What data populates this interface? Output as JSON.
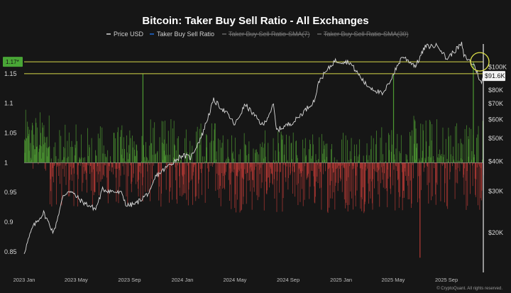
{
  "chart_data": {
    "type": "bar+line",
    "title": "Bitcoin: Taker Buy Sell Ratio - All Exchanges",
    "legend": [
      {
        "label": "Price USD",
        "color": "#d9d9d9",
        "active": true
      },
      {
        "label": "Taker Buy Sell Ratio",
        "color": "#1f6bd6",
        "active": true
      },
      {
        "label": "Taker Buy Sell Ratio-SMA(7)",
        "color": "#777777",
        "active": false
      },
      {
        "label": "Taker Buy Sell Ratio-SMA(30)",
        "color": "#777777",
        "active": false
      }
    ],
    "x_ticks": [
      "2023 Jan",
      "2023 May",
      "2023 Sep",
      "2024 Jan",
      "2024 May",
      "2024 Sep",
      "2025 Jan",
      "2025 May",
      "2025 Sep"
    ],
    "x_range": [
      "2023-01-01",
      "2025-11-25"
    ],
    "left_axis": {
      "ylim": [
        0.82,
        1.2
      ],
      "ticks": [
        "0.85",
        "0.9",
        "0.95",
        "1",
        "1.05",
        "1.1",
        "1.15"
      ],
      "baseline": 1
    },
    "right_axis": {
      "scale": "log",
      "ylim": [
        14000,
        125000
      ],
      "ticks": [
        "$20K",
        "$30K",
        "$40K",
        "$50K",
        "$60K",
        "$70K",
        "$80K",
        "$100K"
      ]
    },
    "ratio_series": {
      "name": "Taker Buy Sell Ratio",
      "up_color": "#4e9a32",
      "down_color": "#b53a35",
      "segments": [
        {
          "start": "2023-01",
          "end": "2023-03",
          "mean": 1.03,
          "spread": 0.06
        },
        {
          "start": "2023-03",
          "end": "2023-10",
          "mean": 0.995,
          "spread": 0.07
        },
        {
          "start": "2023-10",
          "end": "2024-04",
          "mean": 1.0,
          "spread": 0.075
        },
        {
          "start": "2024-04",
          "end": "2024-12",
          "mean": 0.985,
          "spread": 0.07
        },
        {
          "start": "2024-12",
          "end": "2025-06",
          "mean": 0.99,
          "spread": 0.075
        },
        {
          "start": "2025-06",
          "end": "2025-11",
          "mean": 1.0,
          "spread": 0.08
        }
      ],
      "notable": [
        {
          "date": "2023-10",
          "value": 1.15
        },
        {
          "date": "2025-05",
          "value": 1.15
        },
        {
          "date": "2025-11",
          "value": 1.17
        },
        {
          "date": "2025-07",
          "value": 0.84
        }
      ]
    },
    "price_series": {
      "name": "Price USD",
      "color": "#d9d9d9",
      "points": [
        [
          "2023-01-01",
          16500
        ],
        [
          "2023-01-20",
          21000
        ],
        [
          "2023-02-15",
          24300
        ],
        [
          "2023-03-10",
          20000
        ],
        [
          "2023-04-01",
          28500
        ],
        [
          "2023-04-15",
          30300
        ],
        [
          "2023-05-15",
          27000
        ],
        [
          "2023-06-15",
          25200
        ],
        [
          "2023-07-01",
          30500
        ],
        [
          "2023-08-15",
          29300
        ],
        [
          "2023-08-25",
          26000
        ],
        [
          "2023-09-15",
          26500
        ],
        [
          "2023-10-20",
          30000
        ],
        [
          "2023-10-31",
          34500
        ],
        [
          "2023-12-01",
          38500
        ],
        [
          "2023-12-31",
          42500
        ],
        [
          "2024-01-20",
          41500
        ],
        [
          "2024-02-15",
          51500
        ],
        [
          "2024-03-13",
          72500
        ],
        [
          "2024-04-15",
          63000
        ],
        [
          "2024-05-01",
          57000
        ],
        [
          "2024-05-25",
          69500
        ],
        [
          "2024-07-05",
          56500
        ],
        [
          "2024-07-29",
          69000
        ],
        [
          "2024-08-05",
          54000
        ],
        [
          "2024-09-15",
          59000
        ],
        [
          "2024-10-31",
          72000
        ],
        [
          "2024-11-12",
          88000
        ],
        [
          "2024-12-17",
          106000
        ],
        [
          "2025-01-20",
          105000
        ],
        [
          "2025-02-28",
          84000
        ],
        [
          "2025-04-08",
          76500
        ],
        [
          "2025-05-22",
          111000
        ],
        [
          "2025-06-22",
          101000
        ],
        [
          "2025-07-14",
          122000
        ],
        [
          "2025-08-14",
          123000
        ],
        [
          "2025-09-01",
          108000
        ],
        [
          "2025-10-06",
          125000
        ],
        [
          "2025-10-11",
          112000
        ],
        [
          "2025-11-05",
          101000
        ],
        [
          "2025-11-21",
          84500
        ],
        [
          "2025-11-25",
          91600
        ]
      ]
    },
    "annotations": {
      "upper_line_label": "1.17*",
      "upper_line_value": 1.17,
      "mid_line_value": 1.15,
      "price_label": "$91.6K",
      "price_value": 91600,
      "circle_date": "2025-11-25",
      "circle_value": 1.17
    },
    "footer": "© CryptoQuant. All rights reserved."
  }
}
